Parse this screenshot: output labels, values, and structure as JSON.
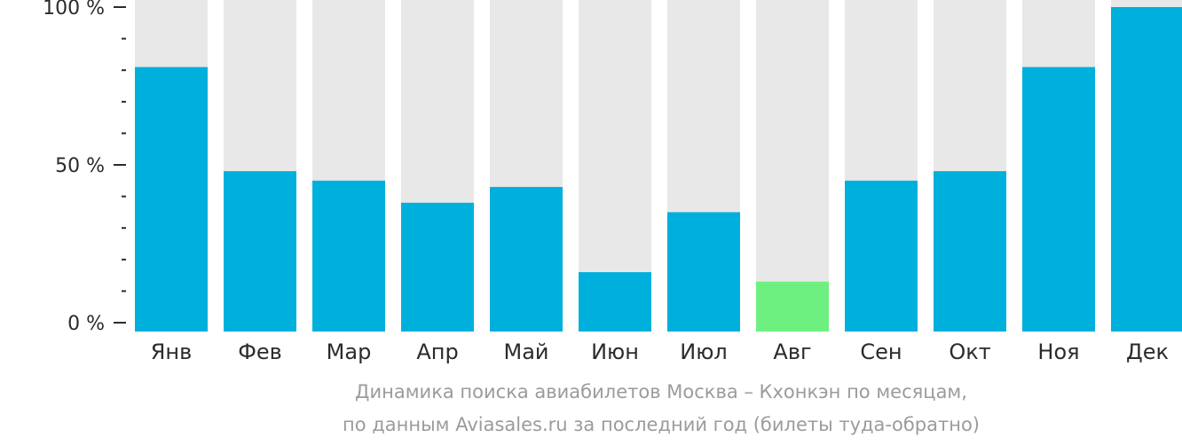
{
  "chart_data": {
    "type": "bar",
    "title": "",
    "xlabel": "",
    "ylabel": "",
    "ylim": [
      0,
      100
    ],
    "y_ticks": [
      {
        "value": 0,
        "label": "0 %"
      },
      {
        "value": 50,
        "label": "50 %"
      },
      {
        "value": 100,
        "label": "100 %"
      }
    ],
    "y_minor_tick_step": 10,
    "categories": [
      "Янв",
      "Фев",
      "Мар",
      "Апр",
      "Май",
      "Июн",
      "Июл",
      "Авг",
      "Сен",
      "Окт",
      "Ноя",
      "Дек"
    ],
    "values": [
      81,
      48,
      45,
      38,
      43,
      16,
      35,
      13,
      45,
      48,
      81,
      100
    ],
    "highlight_index": 7,
    "colors": {
      "bar": "#00b0dc",
      "highlight": "#6ef080",
      "background": "#e8e8e8",
      "axis": "#2b2b2b"
    },
    "grid": false,
    "legend": "none"
  },
  "caption": {
    "line1": "Динамика поиска авиабилетов Москва – Кхонкэн по месяцам,",
    "line2": "по данным Aviasales.ru за последний год (билеты туда-обратно)"
  }
}
